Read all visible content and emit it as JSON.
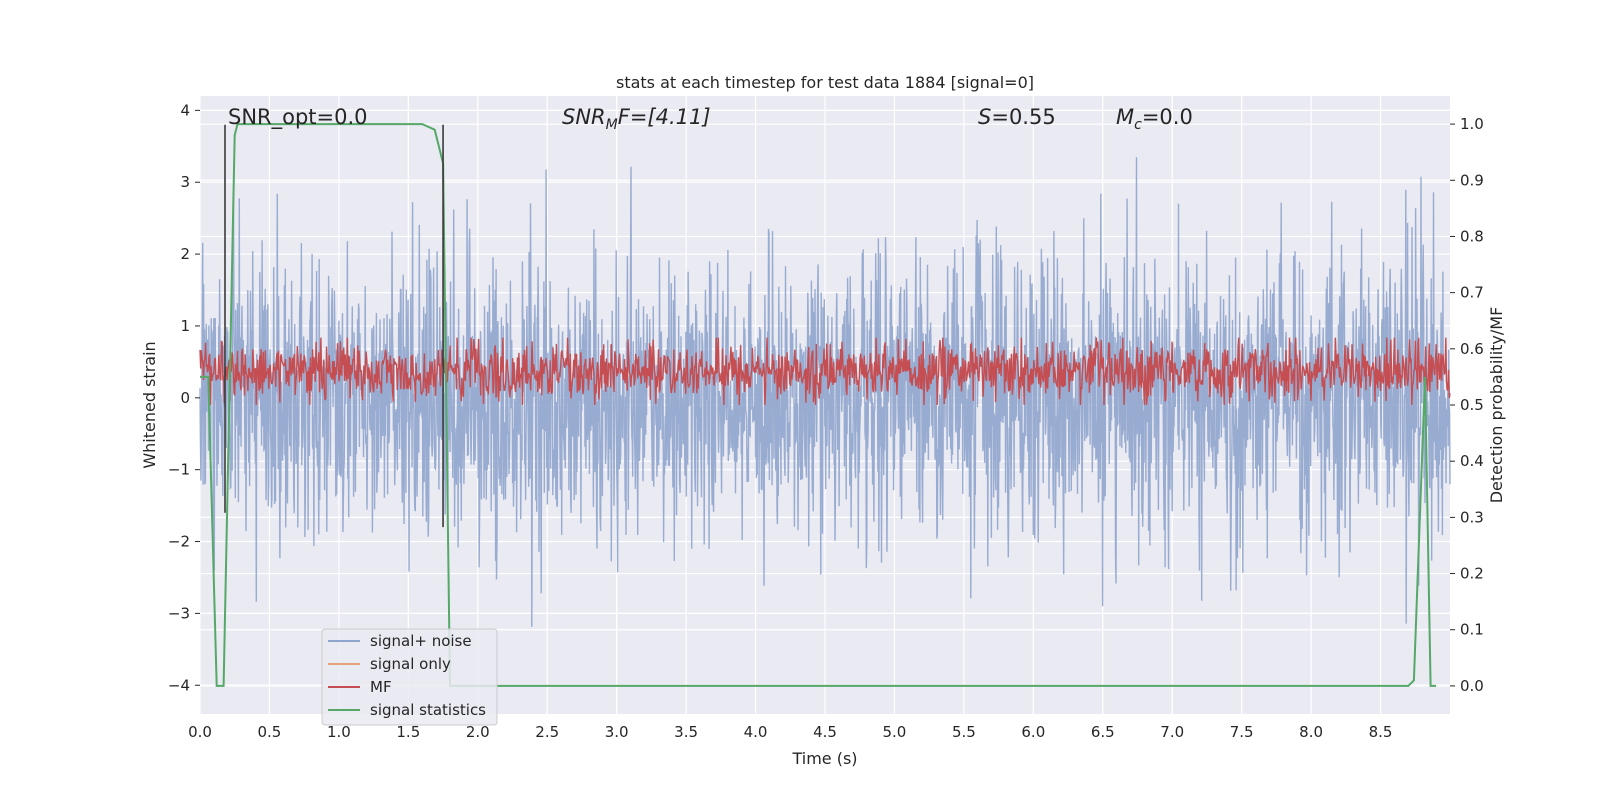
{
  "chart_data": {
    "type": "line",
    "title": "stats at each timestep for test data 1884 [signal=0]",
    "xlabel": "Time (s)",
    "ylabel": "Whitened strain",
    "ylabel_right": "Detection probability/MF",
    "xlim": [
      0.0,
      9.0
    ],
    "ylim": [
      -4.4,
      4.2
    ],
    "ylim_right": [
      -0.05,
      1.05
    ],
    "x_ticks": [
      "0.0",
      "0.5",
      "1.0",
      "1.5",
      "2.0",
      "2.5",
      "3.0",
      "3.5",
      "4.0",
      "4.5",
      "5.0",
      "5.5",
      "6.0",
      "6.5",
      "7.0",
      "7.5",
      "8.0",
      "8.5"
    ],
    "x_tick_values": [
      0.0,
      0.5,
      1.0,
      1.5,
      2.0,
      2.5,
      3.0,
      3.5,
      4.0,
      4.5,
      5.0,
      5.5,
      6.0,
      6.5,
      7.0,
      7.5,
      8.0,
      8.5
    ],
    "y_ticks": [
      "4",
      "3",
      "2",
      "1",
      "0",
      "−1",
      "−2",
      "−3",
      "−4"
    ],
    "y_tick_values": [
      4,
      3,
      2,
      1,
      0,
      -1,
      -2,
      -3,
      -4
    ],
    "y_ticks_right": [
      "1.0",
      "0.9",
      "0.8",
      "0.7",
      "0.6",
      "0.5",
      "0.4",
      "0.3",
      "0.2",
      "0.1",
      "0.0"
    ],
    "y_tick_values_right": [
      1.0,
      0.9,
      0.8,
      0.7,
      0.6,
      0.5,
      0.4,
      0.3,
      0.2,
      0.1,
      0.0
    ],
    "grid": true,
    "legend_position": "lower-left",
    "annotations": {
      "snr_opt": "SNR_opt=0.0",
      "snr_mf_main": "SNR",
      "snr_mf_sub": "M",
      "snr_mf_tail": "F=[4.11]",
      "s_main": "S",
      "s_tail": "=0.55",
      "mc_main": "M",
      "mc_sub": "c",
      "mc_tail": "=0.0"
    },
    "series": [
      {
        "name": "signal+ noise",
        "color": "#8fa4cc",
        "axis": "left",
        "description_values": {
          "typical_abs": 1.0,
          "x_range": [
            0.0,
            9.0
          ],
          "min": -4.0,
          "max": 3.35,
          "seed": 1884
        }
      },
      {
        "name": "signal only",
        "color": "#e8a17f",
        "axis": "left",
        "values": []
      },
      {
        "name": "MF",
        "color": "#c44e52",
        "axis": "right",
        "description_values": {
          "x_range": [
            0.0,
            9.0
          ],
          "min": 0.5,
          "max": 0.62,
          "seed": 42
        }
      },
      {
        "name": "signal statistics",
        "color": "#55a868",
        "axis": "right",
        "x": [
          0.0,
          0.06,
          0.12,
          0.17,
          0.25,
          0.27,
          1.0,
          1.6,
          1.69,
          1.75,
          1.8,
          2.0,
          8.5,
          8.7,
          8.74,
          8.82,
          8.86,
          8.9
        ],
        "y": [
          0.55,
          0.55,
          0.0,
          0.0,
          0.98,
          1.0,
          1.0,
          1.0,
          0.99,
          0.93,
          0.0,
          0.0,
          0.0,
          0.0,
          0.01,
          0.55,
          0.0,
          0.0
        ]
      }
    ],
    "vertical_lines": [
      {
        "x": 0.18,
        "y_top": 3.8,
        "y_bottom": -1.6,
        "color": "#3a3a3a"
      },
      {
        "x": 1.75,
        "y_top": 3.8,
        "y_bottom": -1.8,
        "color": "#3a3a3a"
      }
    ]
  }
}
